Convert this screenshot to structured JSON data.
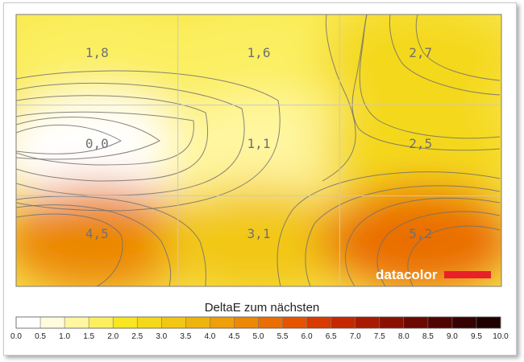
{
  "chart_data": {
    "type": "heatmap",
    "title": "",
    "xlabel": "",
    "ylabel": "",
    "grid": {
      "cols": 3,
      "rows": 3,
      "shown": true
    },
    "cells": [
      [
        "1,8",
        "1,6",
        "2,7"
      ],
      [
        "0,0",
        "1,1",
        "2,5"
      ],
      [
        "4,5",
        "3,1",
        "5,2"
      ]
    ],
    "values": [
      [
        1.8,
        1.6,
        2.7
      ],
      [
        0.0,
        1.1,
        2.5
      ],
      [
        4.5,
        3.1,
        5.2
      ]
    ],
    "logo": "datacolor",
    "colorbar": {
      "label": "DeltaE zum nächsten",
      "min": 0.0,
      "max": 10.0,
      "ticks": [
        "0.0",
        "0.5",
        "1.0",
        "1.5",
        "2.0",
        "2.5",
        "3.0",
        "3.5",
        "4.0",
        "4.5",
        "5.0",
        "5.5",
        "6.0",
        "6.5",
        "7.0",
        "7.5",
        "8.0",
        "8.5",
        "9.0",
        "9.5",
        "10.0"
      ],
      "colors": [
        "#ffffff",
        "#fffbdc",
        "#fff6a0",
        "#fbef60",
        "#f7e620",
        "#f4d81a",
        "#f2c714",
        "#f0b40e",
        "#ee9f0a",
        "#ec8806",
        "#ea6e04",
        "#e65402",
        "#d83a02",
        "#c42802",
        "#a81a02",
        "#8a1002",
        "#6c0802",
        "#500402",
        "#360202",
        "#1e0000"
      ]
    },
    "colors": {
      "grid": "#c8c8c8",
      "contour": "#707070",
      "label": "#707070",
      "logo_bar": "#e8202a"
    }
  }
}
